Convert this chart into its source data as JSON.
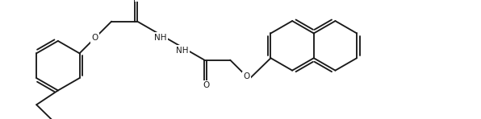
{
  "bg_color": "#ffffff",
  "line_color": "#1a1a1a",
  "line_width": 1.35,
  "fig_width": 5.96,
  "fig_height": 1.48,
  "dpi": 100,
  "xlim": [
    0.0,
    10.0
  ],
  "ylim": [
    0.0,
    2.5
  ]
}
